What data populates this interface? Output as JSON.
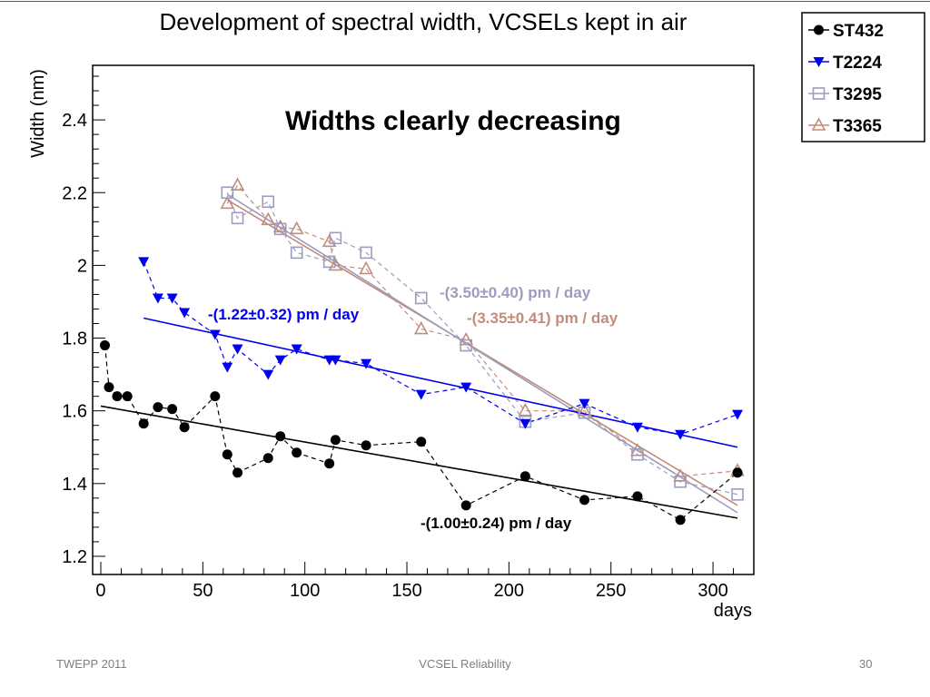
{
  "slide": {
    "footer_left": "TWEPP 2011",
    "footer_center": "VCSEL Reliability",
    "page_number": "30"
  },
  "chart_data": {
    "type": "scatter",
    "title": "Development of spectral width, VCSELs kept in air",
    "xlabel": "days",
    "ylabel": "Width (nm)",
    "xlim": [
      -4,
      320
    ],
    "ylim": [
      1.15,
      2.55
    ],
    "xticks": [
      0,
      50,
      100,
      150,
      200,
      250,
      300
    ],
    "yticks": [
      1.2,
      1.4,
      1.6,
      1.8,
      2,
      2.2,
      2.4
    ],
    "ytick_labels": [
      "1.2",
      "1.4",
      "1.6",
      "1.8",
      "2",
      "2.2",
      "2.4"
    ],
    "annotation": "Widths clearly decreasing",
    "legend_position": "outside-top-right",
    "series": [
      {
        "name": "ST432",
        "color": "#000000",
        "marker": "circle-filled",
        "fit_label": "-(1.00±0.24) pm / day",
        "fit": [
          [
            0,
            1.613
          ],
          [
            312,
            1.305
          ]
        ],
        "x": [
          2,
          4,
          8,
          13,
          21,
          28,
          35,
          41,
          56,
          62,
          67,
          82,
          88,
          96,
          112,
          115,
          130,
          157,
          179,
          208,
          237,
          263,
          284,
          312
        ],
        "y": [
          1.78,
          1.665,
          1.64,
          1.64,
          1.565,
          1.61,
          1.605,
          1.555,
          1.64,
          1.48,
          1.43,
          1.47,
          1.53,
          1.485,
          1.455,
          1.52,
          1.505,
          1.515,
          1.34,
          1.42,
          1.355,
          1.365,
          1.3,
          1.43
        ]
      },
      {
        "name": "T2224",
        "color": "#0000ee",
        "marker": "triangle-down-filled",
        "fit_label": "-(1.22±0.32) pm / day",
        "fit": [
          [
            21,
            1.855
          ],
          [
            312,
            1.5
          ]
        ],
        "x": [
          21,
          28,
          35,
          41,
          56,
          62,
          67,
          82,
          88,
          96,
          112,
          115,
          130,
          157,
          179,
          208,
          237,
          263,
          284,
          312
        ],
        "y": [
          2.01,
          1.91,
          1.91,
          1.87,
          1.81,
          1.72,
          1.77,
          1.7,
          1.74,
          1.77,
          1.74,
          1.74,
          1.73,
          1.645,
          1.665,
          1.565,
          1.62,
          1.555,
          1.535,
          1.59
        ]
      },
      {
        "name": "T3295",
        "color": "#9c9cbf",
        "marker": "square-open",
        "fit_label": "-(3.50±0.40) pm / day",
        "fit": [
          [
            62,
            2.195
          ],
          [
            312,
            1.32
          ]
        ],
        "x": [
          62,
          67,
          82,
          88,
          96,
          112,
          115,
          130,
          157,
          179,
          208,
          237,
          263,
          284,
          312
        ],
        "y": [
          2.2,
          2.13,
          2.175,
          2.1,
          2.035,
          2.01,
          2.075,
          2.035,
          1.91,
          1.78,
          1.57,
          1.595,
          1.48,
          1.405,
          1.37
        ]
      },
      {
        "name": "T3365",
        "color": "#c48b7a",
        "marker": "triangle-up-open",
        "fit_label": "-(3.35±0.41) pm / day",
        "fit": [
          [
            62,
            2.18
          ],
          [
            312,
            1.34
          ]
        ],
        "x": [
          62,
          67,
          82,
          88,
          96,
          112,
          115,
          130,
          157,
          179,
          208,
          237,
          263,
          284,
          312
        ],
        "y": [
          2.17,
          2.22,
          2.125,
          2.105,
          2.1,
          2.065,
          2.0,
          1.99,
          1.825,
          1.795,
          1.6,
          1.6,
          1.49,
          1.42,
          1.435
        ]
      }
    ]
  }
}
